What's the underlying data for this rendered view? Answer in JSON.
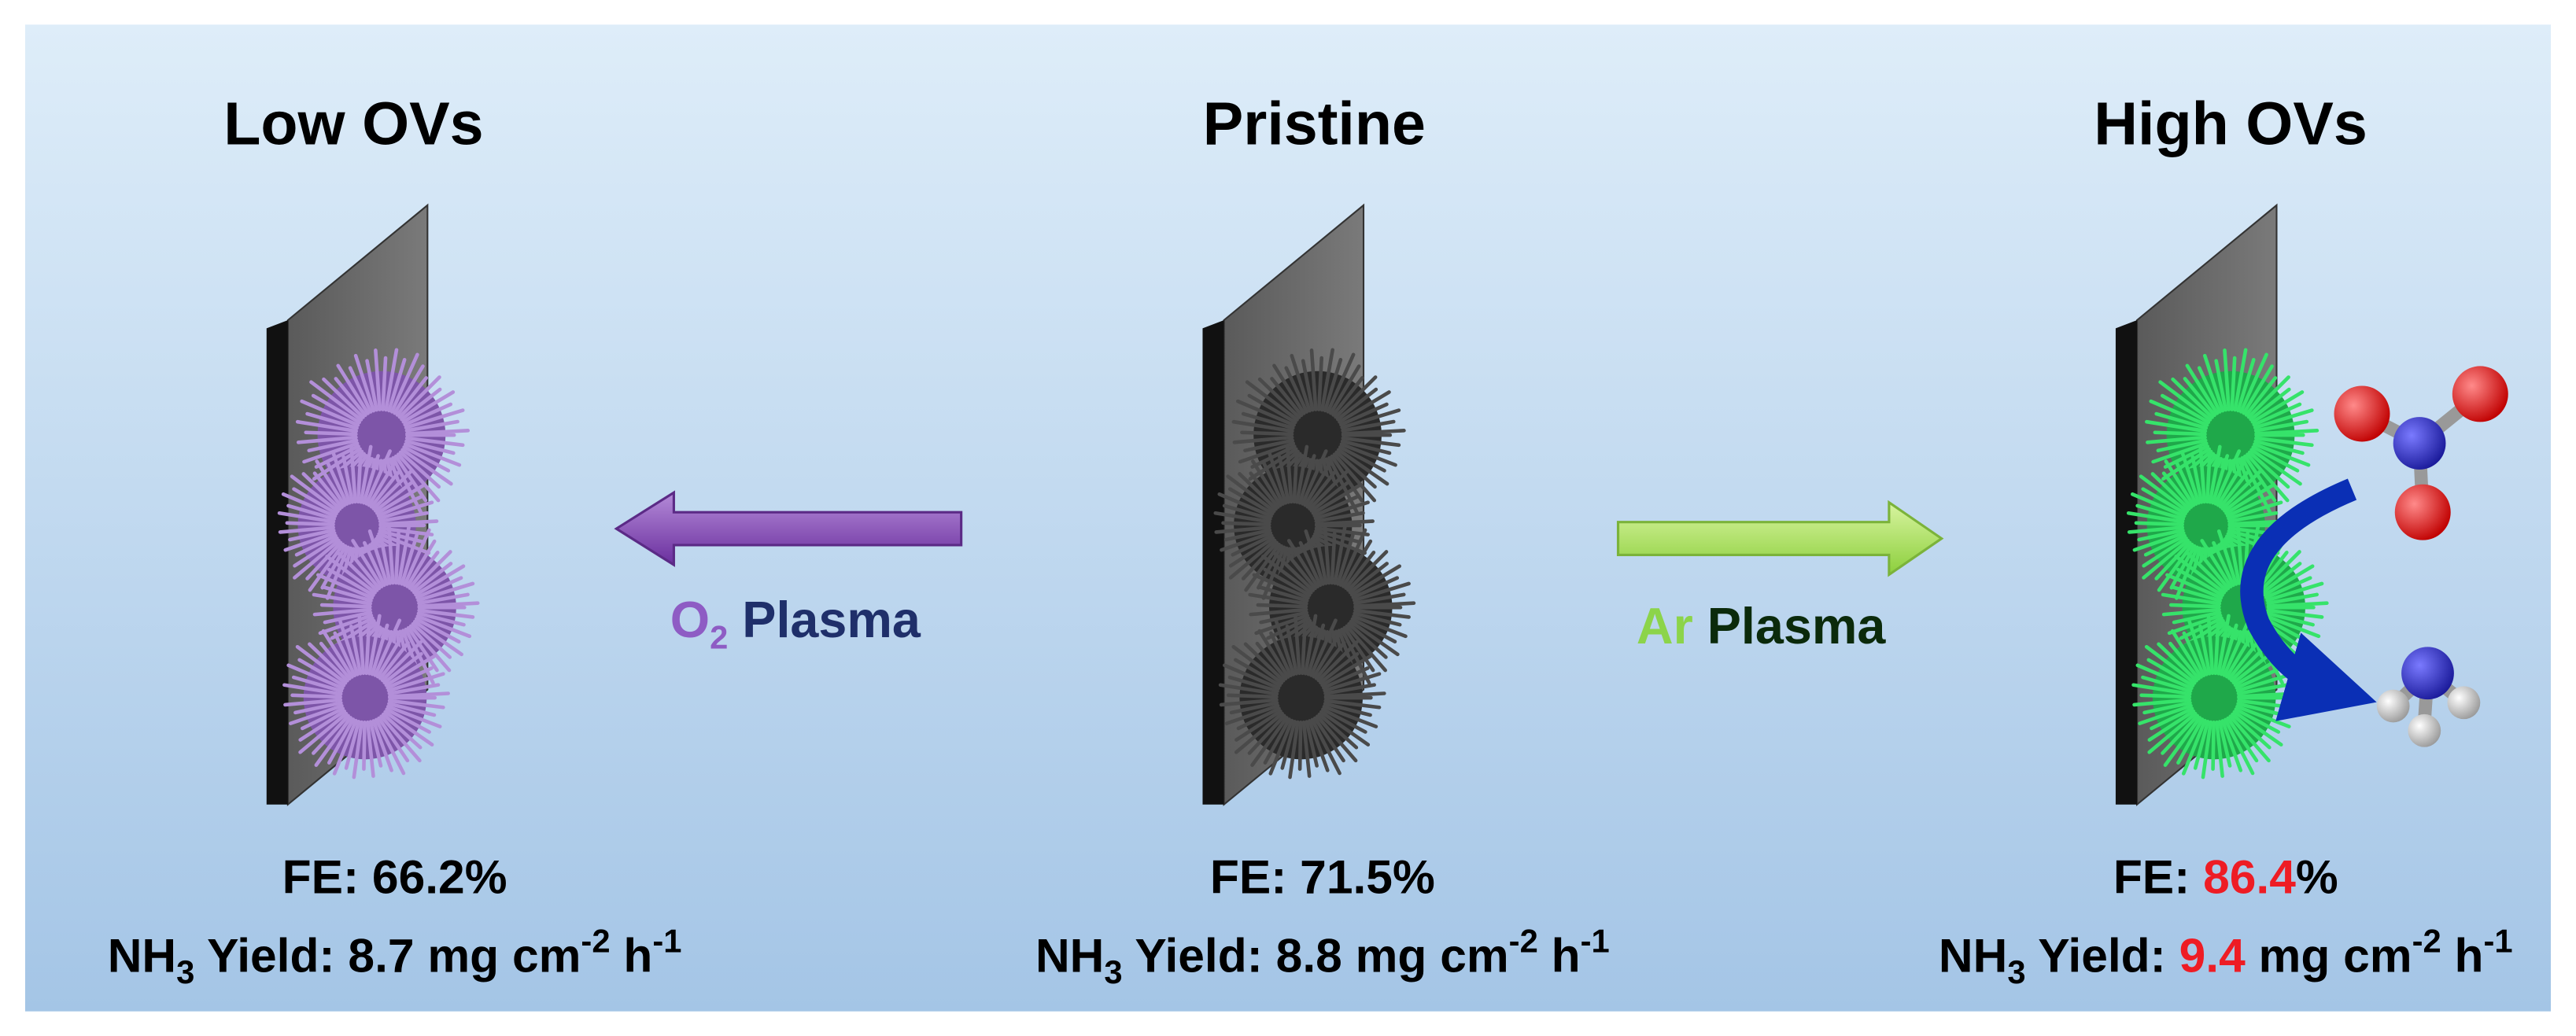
{
  "panels": [
    {
      "title": "Low OVs",
      "fe_label": "FE: ",
      "fe_value": "66.2",
      "fe_unit": "%",
      "yield_species": "NH",
      "yield_species_sub": "3",
      "yield_label": " Yield: ",
      "yield_value": "8.7",
      "yield_unit_a": " mg cm",
      "yield_unit_a_sup": "-2",
      "yield_unit_b": " h",
      "yield_unit_b_sup": "-1"
    },
    {
      "title": "Pristine",
      "fe_label": "FE: ",
      "fe_value": "71.5",
      "fe_unit": "%",
      "yield_species": "NH",
      "yield_species_sub": "3",
      "yield_label": " Yield: ",
      "yield_value": "8.8",
      "yield_unit_a": " mg cm",
      "yield_unit_a_sup": "-2",
      "yield_unit_b": " h",
      "yield_unit_b_sup": "-1"
    },
    {
      "title": "High OVs",
      "fe_label": "FE: ",
      "fe_value": "86.4",
      "fe_unit": "%",
      "yield_species": "NH",
      "yield_species_sub": "3",
      "yield_label": " Yield: ",
      "yield_value": "9.4",
      "yield_unit_a": " mg cm",
      "yield_unit_a_sup": "-2",
      "yield_unit_b": " h",
      "yield_unit_b_sup": "-1"
    }
  ],
  "arrows": [
    {
      "gas": "O",
      "gas_sub": "2",
      "label": " Plasma"
    },
    {
      "gas": "Ar",
      "label": " Plasma"
    }
  ]
}
